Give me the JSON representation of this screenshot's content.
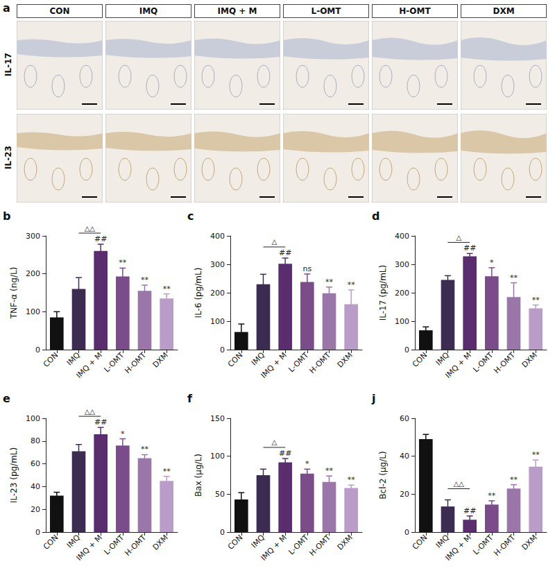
{
  "panel_a": {
    "panel": "a",
    "columns": [
      "CON",
      "IMQ",
      "IMQ + M",
      "L-OMT",
      "H-OMT",
      "DXM"
    ],
    "rows": [
      "IL-17",
      "IL-23"
    ]
  },
  "chart_data": [
    {
      "type": "bar",
      "panel": "b",
      "ylabel": "TNF-α (ng/L)",
      "categories": [
        "CON",
        "IMQ",
        "IMQ + M",
        "L-OMT",
        "H-OMT",
        "DXM"
      ],
      "values": [
        85,
        160,
        260,
        193,
        155,
        135
      ],
      "errors": [
        15,
        30,
        18,
        22,
        15,
        12
      ],
      "colors": [
        "#111111",
        "#3d2c52",
        "#5a2d6e",
        "#7b4c8a",
        "#9a76a9",
        "#b99cc8"
      ],
      "significance": [
        null,
        null,
        "##",
        "**",
        "**",
        "**"
      ],
      "bracket": {
        "from": "IMQ",
        "to": "IMQ + M",
        "label": "△△"
      },
      "ylim": [
        0,
        300
      ],
      "yticks": [
        0,
        100,
        200,
        300
      ],
      "grid": false
    },
    {
      "type": "bar",
      "panel": "c",
      "ylabel": "IL-6 (pg/mL)",
      "categories": [
        "CON",
        "IMQ",
        "IMQ + M",
        "L-OMT",
        "H-OMT",
        "DXM"
      ],
      "values": [
        62,
        230,
        302,
        238,
        198,
        160
      ],
      "errors": [
        28,
        35,
        20,
        28,
        22,
        50
      ],
      "colors": [
        "#111111",
        "#3d2c52",
        "#5a2d6e",
        "#7b4c8a",
        "#9a76a9",
        "#b99cc8"
      ],
      "significance": [
        null,
        null,
        "##",
        "ns",
        "**",
        "**"
      ],
      "bracket": {
        "from": "IMQ",
        "to": "IMQ + M",
        "label": "△"
      },
      "ylim": [
        0,
        400
      ],
      "yticks": [
        0,
        100,
        200,
        300,
        400
      ],
      "grid": false
    },
    {
      "type": "bar",
      "panel": "d",
      "ylabel": "IL-17 (pg/mL)",
      "categories": [
        "CON",
        "IMQ",
        "IMQ + M",
        "L-OMT",
        "H-OMT",
        "DXM"
      ],
      "values": [
        68,
        245,
        328,
        258,
        185,
        145
      ],
      "errors": [
        12,
        15,
        10,
        30,
        50,
        12
      ],
      "colors": [
        "#111111",
        "#3d2c52",
        "#5a2d6e",
        "#7b4c8a",
        "#9a76a9",
        "#b99cc8"
      ],
      "significance": [
        null,
        null,
        "##",
        "*",
        "**",
        "**"
      ],
      "bracket": {
        "from": "IMQ",
        "to": "IMQ + M",
        "label": "△"
      },
      "ylim": [
        0,
        400
      ],
      "yticks": [
        0,
        100,
        200,
        300,
        400
      ],
      "grid": false
    },
    {
      "type": "bar",
      "panel": "e",
      "ylabel": "IL-23 (pg/mL)",
      "categories": [
        "CON",
        "IMQ",
        "IMQ + M",
        "L-OMT",
        "H-OMT",
        "DXM"
      ],
      "values": [
        32,
        71,
        86,
        76,
        65,
        45
      ],
      "errors": [
        3,
        6,
        6,
        6,
        3,
        4
      ],
      "colors": [
        "#111111",
        "#3d2c52",
        "#5a2d6e",
        "#7b4c8a",
        "#9a76a9",
        "#b99cc8"
      ],
      "significance": [
        null,
        null,
        "##",
        "*",
        "**",
        "**"
      ],
      "bracket": {
        "from": "IMQ",
        "to": "IMQ + M",
        "label": "△△"
      },
      "ylim": [
        0,
        100
      ],
      "yticks": [
        0,
        20,
        40,
        60,
        80,
        100
      ],
      "grid": false
    },
    {
      "type": "bar",
      "panel": "f",
      "ylabel": "Bax (μg/L)",
      "categories": [
        "CON",
        "IMQ",
        "IMQ + M",
        "L-OMT",
        "H-OMT",
        "DXM"
      ],
      "values": [
        43,
        75,
        92,
        77,
        66,
        58
      ],
      "errors": [
        9,
        8,
        5,
        6,
        8,
        4
      ],
      "colors": [
        "#111111",
        "#3d2c52",
        "#5a2d6e",
        "#7b4c8a",
        "#9a76a9",
        "#b99cc8"
      ],
      "significance": [
        null,
        null,
        "##",
        "*",
        "**",
        "**"
      ],
      "bracket": {
        "from": "IMQ",
        "to": "IMQ + M",
        "label": "△"
      },
      "ylim": [
        0,
        150
      ],
      "yticks": [
        0,
        50,
        100,
        150
      ],
      "grid": false
    },
    {
      "type": "bar",
      "panel": "j",
      "ylabel": "Bcl-2 (μg/L)",
      "categories": [
        "CON",
        "IMQ",
        "IMQ + M",
        "L-OMT",
        "H-OMT",
        "DXM"
      ],
      "values": [
        49,
        13.5,
        6.5,
        14.5,
        23,
        34.5
      ],
      "errors": [
        2.5,
        3.5,
        2,
        2,
        2,
        3.5
      ],
      "colors": [
        "#111111",
        "#3d2c52",
        "#5a2d6e",
        "#7b4c8a",
        "#9a76a9",
        "#b99cc8"
      ],
      "significance": [
        null,
        null,
        "##",
        "**",
        "**",
        "**"
      ],
      "bracket": {
        "from": "IMQ",
        "to": "IMQ + M",
        "label": "△△"
      },
      "ylim": [
        0,
        60
      ],
      "yticks": [
        0,
        20,
        40,
        60
      ],
      "grid": false
    }
  ]
}
